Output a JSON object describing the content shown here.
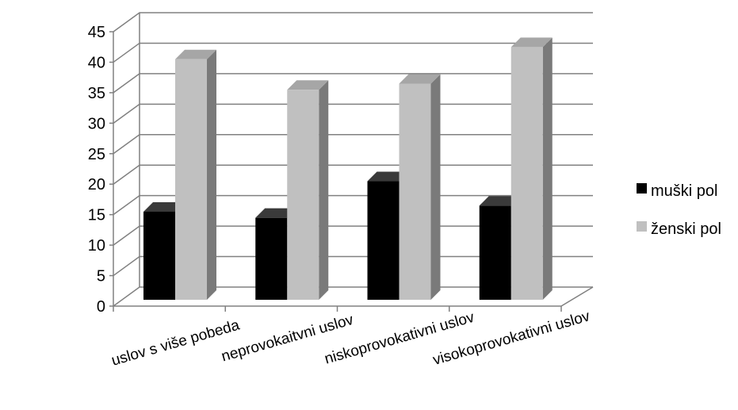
{
  "chart_data": {
    "type": "bar",
    "style": "3d-clustered-column",
    "categories": [
      "uslov s više pobeda",
      "neprovokaitvni uslov",
      "niskoprovokativni uslov",
      "visokoprovokativni uslov"
    ],
    "series": [
      {
        "name": "muški pol",
        "values": [
          16,
          15,
          21,
          17
        ],
        "color": "#000000"
      },
      {
        "name": "ženski pol",
        "values": [
          41,
          36,
          37,
          43
        ],
        "color": "#c0c0c0"
      }
    ],
    "ylim": [
      0,
      45
    ],
    "yticks": [
      0,
      5,
      10,
      15,
      20,
      25,
      30,
      35,
      40,
      45
    ],
    "title": "",
    "xlabel": "",
    "ylabel": "",
    "grid": true,
    "legend_position": "right"
  }
}
